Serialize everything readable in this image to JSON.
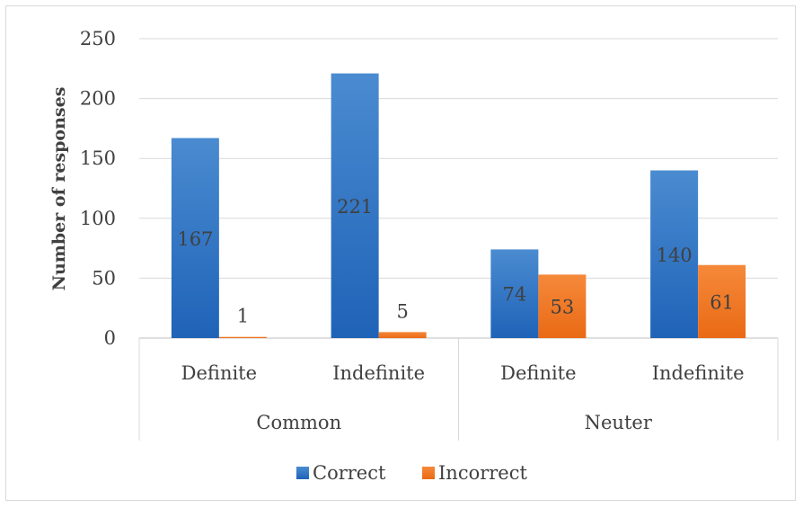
{
  "chart_data": {
    "type": "bar",
    "title": "",
    "ylabel": "Number of responses",
    "ylim": [
      0,
      250
    ],
    "yticks": [
      0,
      50,
      100,
      150,
      200,
      250
    ],
    "groups": [
      {
        "label": "Common",
        "categories": [
          "Definite",
          "Indefinite"
        ]
      },
      {
        "label": "Neuter",
        "categories": [
          "Definite",
          "Indefinite"
        ]
      }
    ],
    "series": [
      {
        "name": "Correct",
        "color": "#2e75b6",
        "values": [
          167,
          221,
          74,
          140
        ]
      },
      {
        "name": "Incorrect",
        "color": "#ed7d31",
        "values": [
          1,
          5,
          53,
          61
        ]
      }
    ],
    "legend_position": "bottom",
    "grid": true
  }
}
